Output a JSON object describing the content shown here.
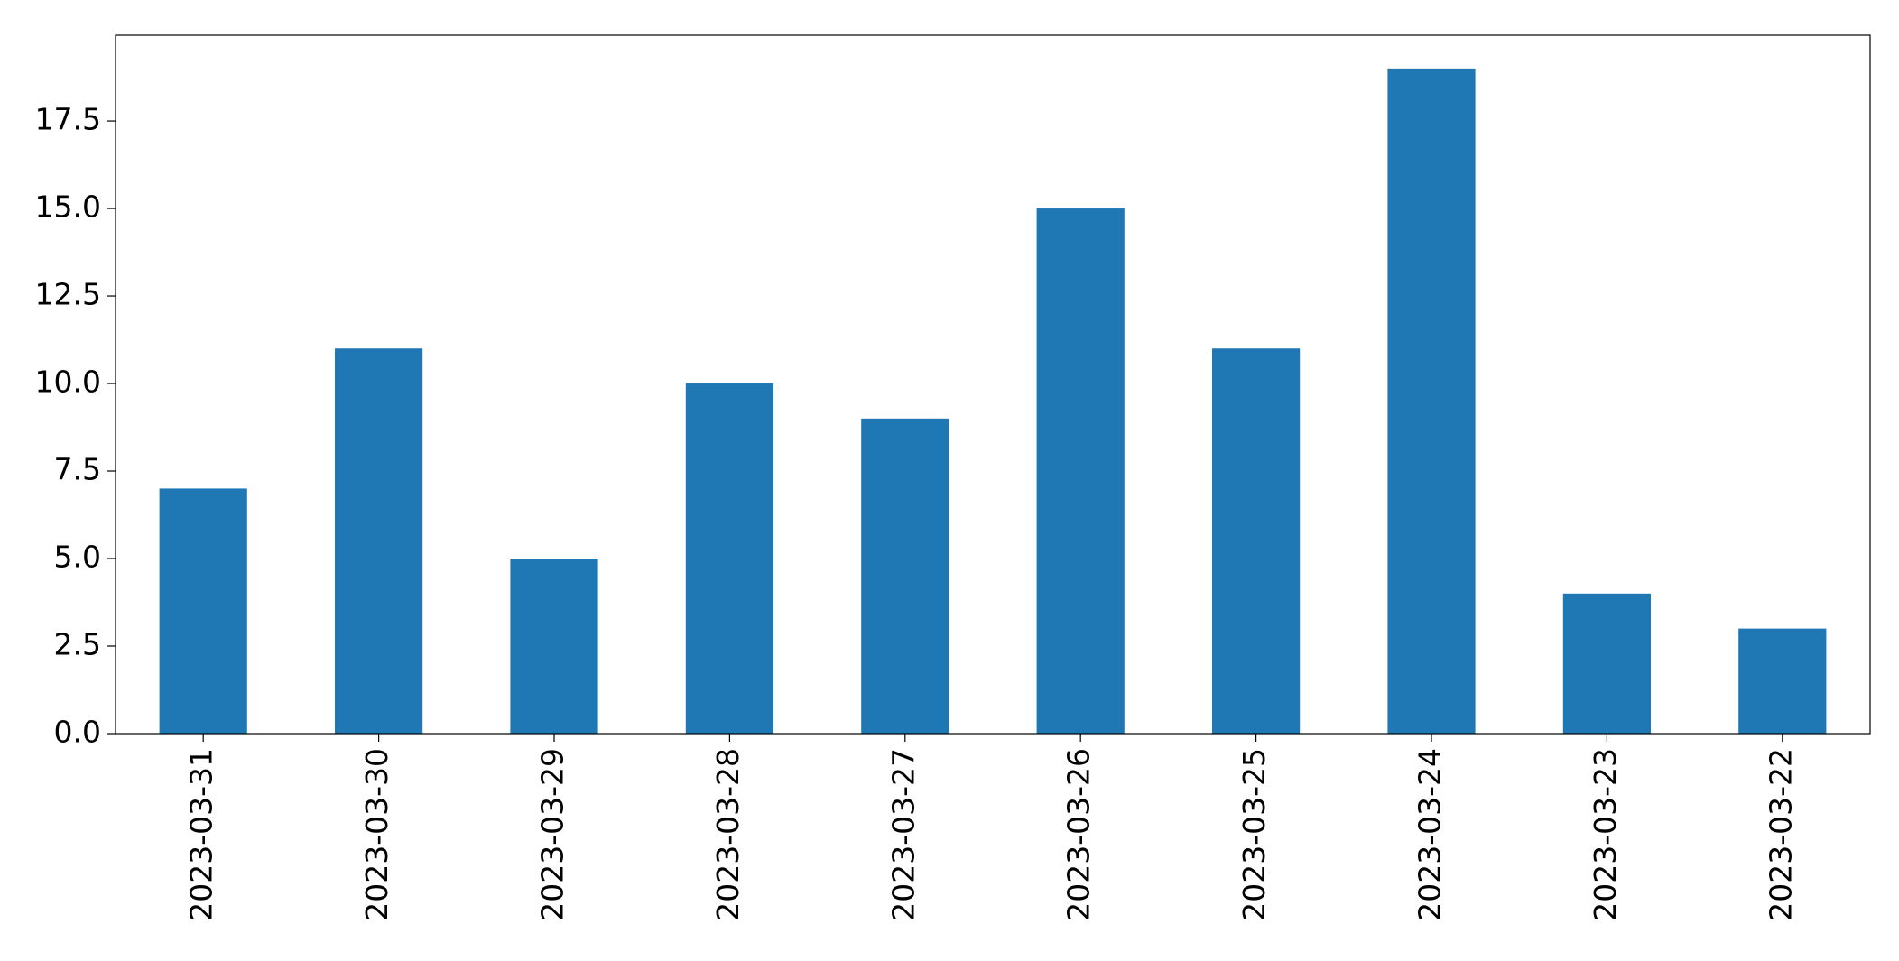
{
  "chart_data": {
    "type": "bar",
    "title": "",
    "xlabel": "",
    "ylabel": "",
    "categories": [
      "2023-03-31",
      "2023-03-30",
      "2023-03-29",
      "2023-03-28",
      "2023-03-27",
      "2023-03-26",
      "2023-03-25",
      "2023-03-24",
      "2023-03-23",
      "2023-03-22"
    ],
    "values": [
      7,
      11,
      5,
      10,
      9,
      15,
      11,
      19,
      4,
      3
    ],
    "ylim": [
      0,
      19.95
    ],
    "yticks": [
      "0.0",
      "2.5",
      "5.0",
      "7.5",
      "10.0",
      "12.5",
      "15.0",
      "17.5"
    ],
    "ytick_values": [
      0,
      2.5,
      5,
      7.5,
      10,
      12.5,
      15,
      17.5
    ],
    "grid": false,
    "legend": "none",
    "bar_color": "#1f77b4"
  }
}
